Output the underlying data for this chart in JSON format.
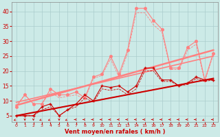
{
  "bg_color": "#cceae7",
  "grid_color": "#aacccc",
  "xlabel": "Vent moyen/en rafales ( km/h )",
  "xlabel_color": "#cc0000",
  "xlim": [
    -0.5,
    23.5
  ],
  "ylim": [
    3,
    43
  ],
  "yticks": [
    5,
    10,
    15,
    20,
    25,
    30,
    35,
    40
  ],
  "xticks": [
    0,
    1,
    2,
    3,
    4,
    5,
    6,
    7,
    8,
    9,
    10,
    11,
    12,
    13,
    14,
    15,
    16,
    17,
    18,
    19,
    20,
    21,
    22,
    23
  ],
  "series_dark_scatter": {
    "x": [
      0,
      1,
      2,
      3,
      4,
      5,
      6,
      7,
      8,
      9,
      10,
      11,
      12,
      13,
      14,
      15,
      16,
      17,
      18,
      19,
      20,
      21,
      22,
      23
    ],
    "y": [
      5,
      5,
      5,
      8,
      9,
      5,
      7,
      9,
      12,
      10,
      15,
      14.5,
      15,
      13,
      15,
      21,
      21,
      17,
      17,
      15,
      16,
      18,
      17,
      17
    ],
    "color": "#cc0000",
    "lw": 0.8,
    "marker": "+",
    "ms": 3.5
  },
  "series_dark_avg": {
    "x": [
      0,
      23
    ],
    "y": [
      5.0,
      17.5
    ],
    "color": "#cc0000",
    "lw": 1.5
  },
  "series_dark_avg2": {
    "x": [
      0,
      23
    ],
    "y": [
      5.0,
      17.5
    ],
    "color": "#cc0000",
    "lw": 0.8,
    "linestyle": "--"
  },
  "series_dark_smooth": {
    "x": [
      0,
      1,
      2,
      3,
      4,
      5,
      6,
      7,
      8,
      9,
      10,
      11,
      12,
      13,
      14,
      15,
      16,
      17,
      18,
      19,
      20,
      21,
      22,
      23
    ],
    "y": [
      5,
      5,
      5,
      7,
      8,
      5,
      7,
      8,
      11,
      9.5,
      14,
      13.5,
      14,
      12,
      14,
      20,
      20,
      16.5,
      16.5,
      15,
      15.5,
      17.5,
      16.5,
      17
    ],
    "color": "#cc0000",
    "lw": 0.6,
    "linestyle": "--"
  },
  "series_pink_scatter": {
    "x": [
      0,
      1,
      2,
      3,
      4,
      5,
      6,
      7,
      8,
      9,
      10,
      11,
      12,
      13,
      14,
      15,
      16,
      17,
      18,
      19,
      20,
      21,
      22,
      23
    ],
    "y": [
      8,
      12,
      9,
      9,
      14,
      12,
      12,
      13,
      11,
      18,
      19,
      25,
      19,
      27,
      41,
      41,
      37,
      34,
      21,
      21,
      28,
      30,
      17,
      26
    ],
    "color": "#ff8080",
    "lw": 0.8,
    "marker": "o",
    "ms": 2.5
  },
  "series_pink_avg1": {
    "x": [
      0,
      23
    ],
    "y": [
      8.5,
      27
    ],
    "color": "#ff8080",
    "lw": 1.8
  },
  "series_pink_avg2": {
    "x": [
      0,
      23
    ],
    "y": [
      9.5,
      25
    ],
    "color": "#ff8080",
    "lw": 1.2
  },
  "series_pink_smooth": {
    "x": [
      0,
      1,
      2,
      3,
      4,
      5,
      6,
      7,
      8,
      9,
      10,
      11,
      12,
      13,
      14,
      15,
      16,
      17,
      18,
      19,
      20,
      21,
      22,
      23
    ],
    "y": [
      8.5,
      12,
      9,
      9,
      13,
      11,
      11.5,
      12,
      10.5,
      17.5,
      18.5,
      24,
      18,
      26,
      39.5,
      39.5,
      35.5,
      33,
      20.5,
      20.5,
      27,
      29,
      16.5,
      25.5
    ],
    "color": "#ff8080",
    "lw": 0.6,
    "linestyle": "--"
  },
  "arrows": {
    "x": [
      0,
      1,
      2,
      3,
      4,
      5,
      6,
      7,
      8,
      9,
      10,
      11,
      12,
      13,
      14,
      15,
      16,
      17,
      18,
      19,
      20,
      21,
      22,
      23
    ],
    "color": "#cc0000",
    "angles": [
      225,
      270,
      270,
      225,
      225,
      270,
      225,
      180,
      180,
      180,
      180,
      180,
      180,
      180,
      180,
      180,
      180,
      180,
      180,
      180,
      180,
      180,
      225,
      180
    ]
  }
}
